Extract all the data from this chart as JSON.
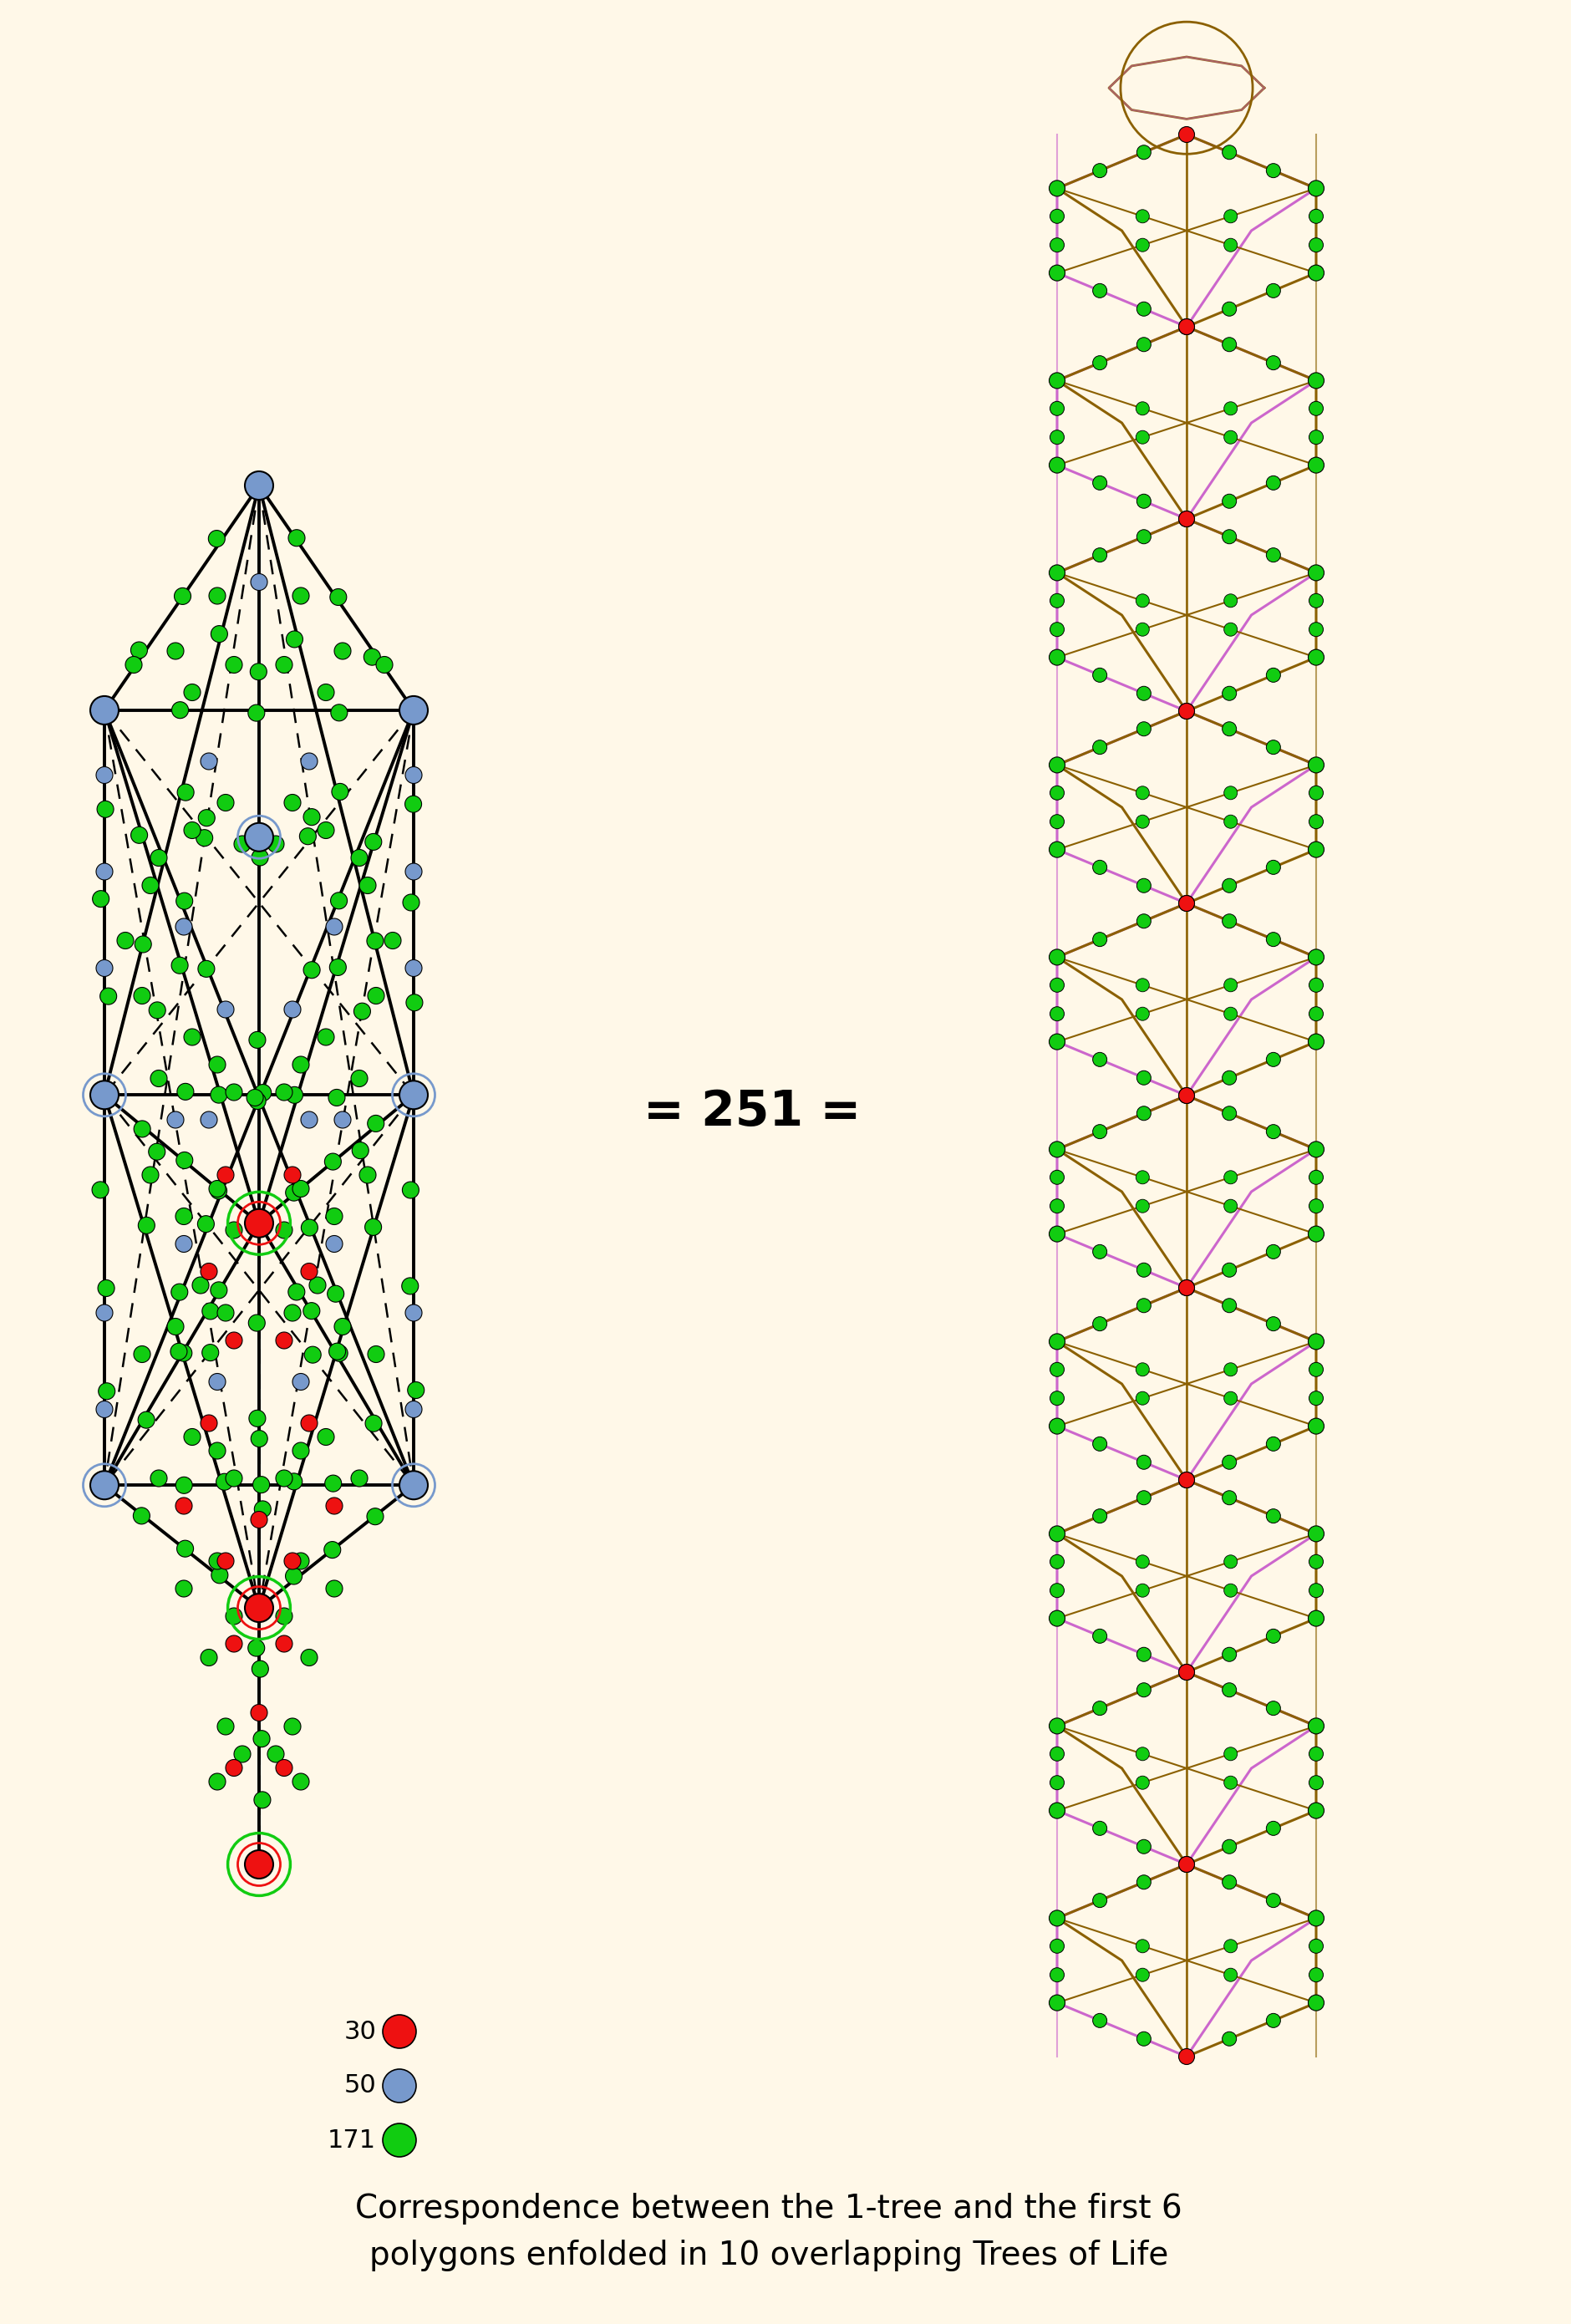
{
  "background_color": "#FFF8E8",
  "title_text": "Correspondence between the 1-tree and the first 6\npolygons enfolded in 10 overlapping Trees of Life",
  "title_fontsize": 28,
  "equation_text": "= 251 =",
  "equation_fontsize": 42,
  "legend_items": [
    {
      "label": "30",
      "color": "#EE1111"
    },
    {
      "label": "50",
      "color": "#7799CC"
    },
    {
      "label": "171",
      "color": "#11CC11"
    }
  ],
  "red_color": "#EE1111",
  "blue_color": "#7799CC",
  "green_color": "#11CC11",
  "dark_olive": "#8B6000",
  "violet": "#CC66CC",
  "node_r": 0.1,
  "seph_r": 0.17
}
